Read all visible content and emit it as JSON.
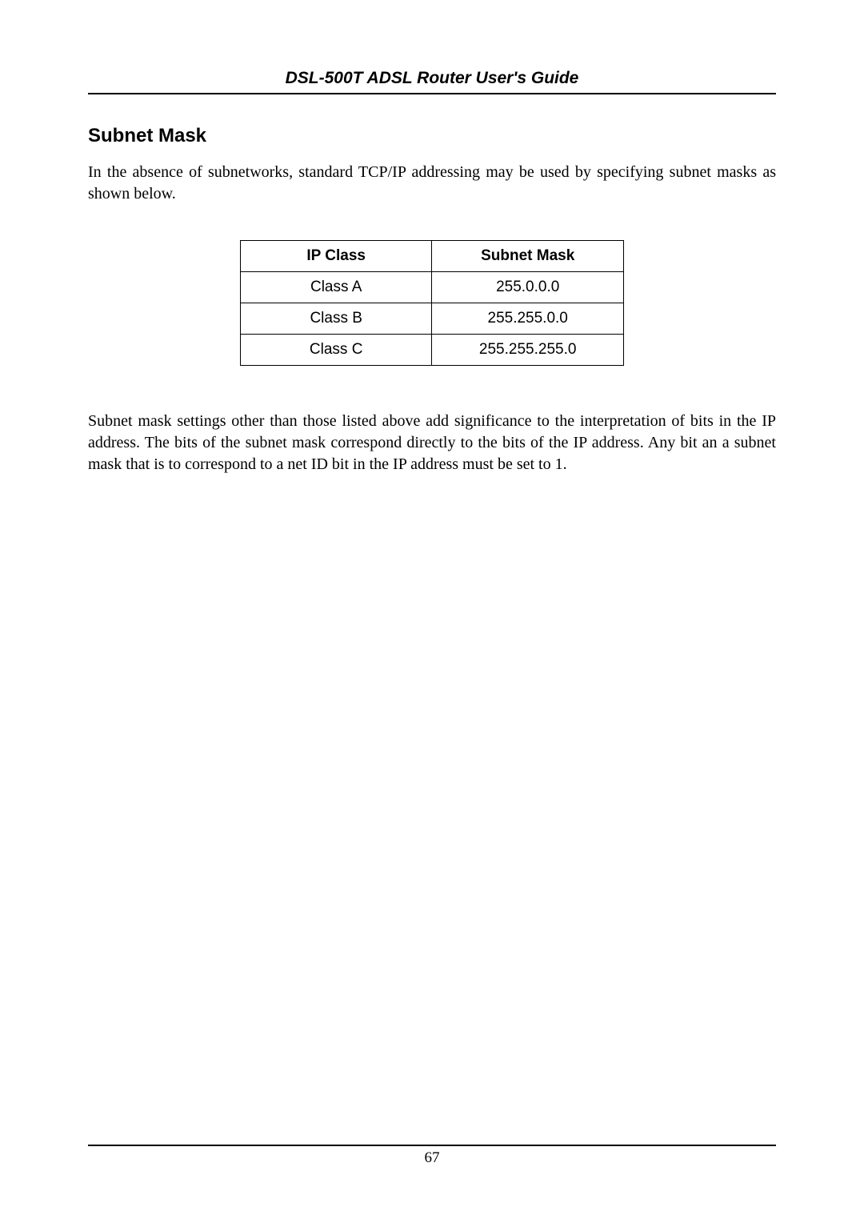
{
  "header": {
    "title": "DSL-500T ADSL Router User's Guide"
  },
  "section": {
    "heading": "Subnet Mask",
    "intro": "In the absence of subnetworks, standard TCP/IP addressing may be used by specifying subnet masks as shown below."
  },
  "table": {
    "columns": [
      "IP Class",
      "Subnet Mask"
    ],
    "rows": [
      [
        "Class A",
        "255.0.0.0"
      ],
      [
        "Class B",
        "255.255.0.0"
      ],
      [
        "Class C",
        "255.255.255.0"
      ]
    ]
  },
  "body": {
    "para1": "Subnet mask settings other than those listed above add significance to the interpretation of bits in the IP address. The bits of the subnet mask correspond directly to the bits of the IP address. Any bit an a subnet mask that is to correspond to a net ID bit in the IP address must be set to 1."
  },
  "footer": {
    "page_number": "67"
  }
}
